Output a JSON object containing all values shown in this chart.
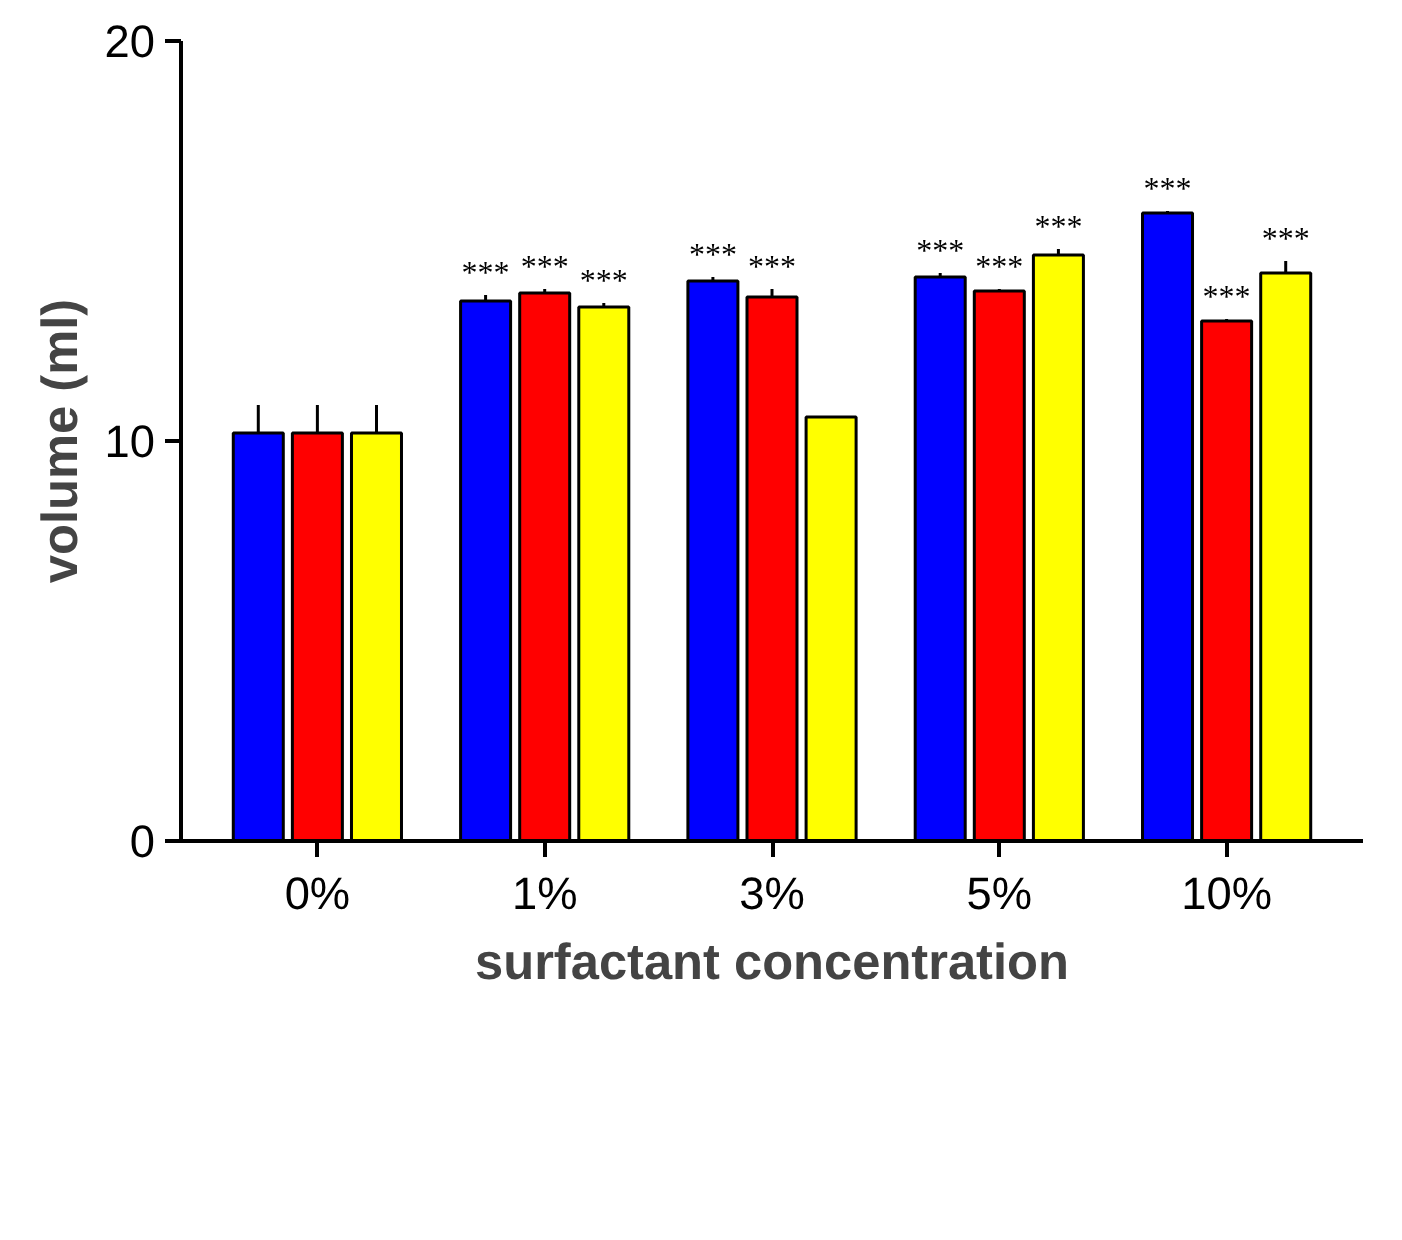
{
  "chart_data": {
    "type": "bar",
    "xlabel": "surfactant concentration",
    "ylabel": "volume (ml)",
    "categories": [
      "0%",
      "1%",
      "3%",
      "5%",
      "10%"
    ],
    "ylim": [
      0,
      20
    ],
    "yticks": [
      0,
      10,
      20
    ],
    "grid": false,
    "series": [
      {
        "color": "#0000ff",
        "values": [
          10.2,
          13.5,
          14.0,
          14.1,
          15.7
        ],
        "errors": [
          0.7,
          0.15,
          0.1,
          0.1,
          0.05
        ],
        "value_labels": [
          null,
          "***",
          "***",
          "***",
          "***"
        ]
      },
      {
        "color": "#ff0000",
        "values": [
          10.2,
          13.7,
          13.6,
          13.75,
          13.0
        ],
        "errors": [
          0.7,
          0.1,
          0.2,
          0.05,
          0.05
        ],
        "value_labels": [
          null,
          "***",
          "***",
          "***",
          "***"
        ]
      },
      {
        "color": "#ffff00",
        "values": [
          10.2,
          13.35,
          10.6,
          14.65,
          14.2
        ],
        "errors": [
          0.7,
          0.1,
          null,
          0.15,
          0.3
        ],
        "value_labels": [
          null,
          "***",
          null,
          "***",
          "***"
        ]
      }
    ]
  }
}
